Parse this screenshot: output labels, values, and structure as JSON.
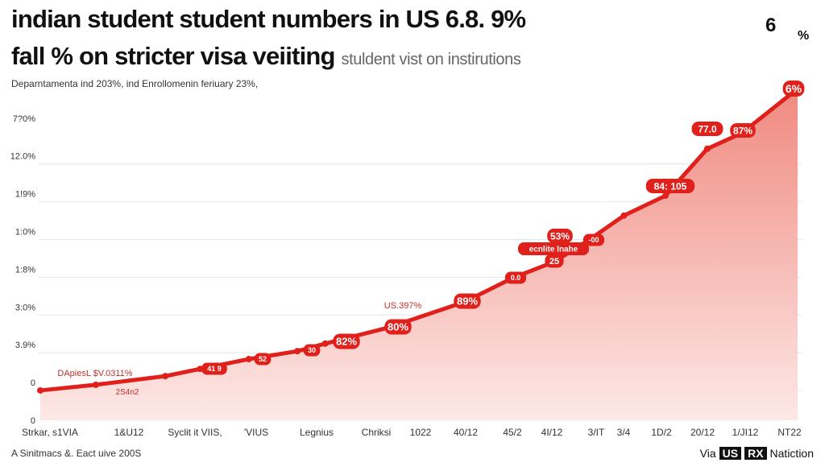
{
  "header": {
    "title_line1": "indian student student numbers in US 6.8. 9%",
    "title_line2": "fall % on stricter visa veiiting",
    "title_inline_sub": "stuldent vist on instirutions",
    "subtitle": "Deparntamenta ind 203%, ind Enrollomenin feriuary 23%,",
    "corner_number": "6",
    "corner_percent": "%"
  },
  "footer": {
    "note": "A Sinitmacs &. Eact uive 200S",
    "source_prefix": "Via",
    "source_badge_1": "US",
    "source_badge_2": "RX",
    "source_name": "Natiction"
  },
  "colors": {
    "line": "#e0201b",
    "fill_top": "#f08a80",
    "fill_bottom": "#fde8e6",
    "grid": "#e6e6e6"
  },
  "chart_data": {
    "type": "area",
    "title": "indian student student numbers in US 6.8. 9%",
    "y_tick_labels": [
      "0",
      "0",
      "3.9%",
      "3:0%",
      "1:8%",
      "1:0%",
      "1!9%",
      "12.0%",
      "7?0%"
    ],
    "x_tick_labels": [
      "Strkar, s1VIA",
      "1&U12",
      "Syclit it VIIS,",
      "'VIUS",
      "Legnius",
      "Chriksi",
      "1022",
      "40/12",
      "45/2",
      "4I/12",
      "3/IT",
      "3/4",
      "1D/2",
      "20/12",
      "1/JI12",
      "NT22"
    ],
    "ylim": [
      0,
      8.8
    ],
    "grid": true,
    "legend": "none",
    "series": [
      {
        "name": "Indian student numbers",
        "x": [
          0,
          0.8,
          1.8,
          2.3,
          3.0,
          3.7,
          4.1,
          5.0,
          6.1,
          6.8,
          7.4,
          7.9,
          8.4,
          9.0,
          9.6,
          10.1,
          10.9
        ],
        "y": [
          0.79,
          0.94,
          1.17,
          1.36,
          1.62,
          1.83,
          2.03,
          2.45,
          3.13,
          3.77,
          4.2,
          4.78,
          5.42,
          5.95,
          7.19,
          7.61,
          8.78
        ]
      }
    ],
    "annotations": [
      {
        "text": "6%",
        "style": "bubble"
      },
      {
        "text": "77.0",
        "style": "bubble"
      },
      {
        "text": "87%",
        "style": "bubble"
      },
      {
        "text": "84: 105",
        "style": "bubble"
      },
      {
        "text": "53%",
        "style": "bubble"
      },
      {
        "text": "ecnlite lnahe",
        "style": "bubble"
      },
      {
        "text": "25",
        "style": "bubble"
      },
      {
        "text": "-00",
        "style": "bubble"
      },
      {
        "text": "0.0",
        "style": "bubble"
      },
      {
        "text": "89%",
        "style": "bubble"
      },
      {
        "text": "80%",
        "style": "bubble"
      },
      {
        "text": "82%",
        "style": "bubble"
      },
      {
        "text": "30",
        "style": "bubble"
      },
      {
        "text": "52",
        "style": "bubble"
      },
      {
        "text": "41 9",
        "style": "bubble"
      },
      {
        "text": "DApiesL $V.0311%",
        "style": "text"
      },
      {
        "text": "US.397%",
        "style": "text"
      },
      {
        "text": "2S4n2",
        "style": "text"
      }
    ]
  }
}
